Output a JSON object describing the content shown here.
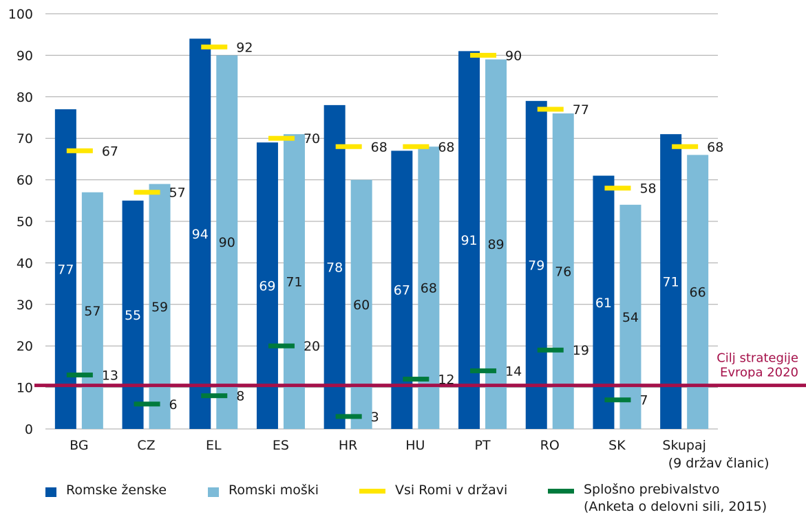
{
  "chart_data": {
    "type": "bar",
    "categories": [
      "BG",
      "CZ",
      "EL",
      "ES",
      "HR",
      "HU",
      "PT",
      "RO",
      "SK",
      "Skupaj\n(9 držav članic)"
    ],
    "series": [
      {
        "name": "Romske ženske",
        "values": [
          77,
          55,
          94,
          69,
          78,
          67,
          91,
          79,
          61,
          71
        ]
      },
      {
        "name": "Romski moški",
        "values": [
          57,
          59,
          90,
          71,
          60,
          68,
          89,
          76,
          54,
          66
        ]
      }
    ],
    "markers": [
      {
        "name": "Vsi Romi v državi",
        "values": [
          67,
          57,
          92,
          70,
          68,
          68,
          90,
          77,
          58,
          68
        ]
      },
      {
        "name": "Splošno prebivalstvo\n(Anketa o delovni sili, 2015)",
        "values": [
          13,
          6,
          8,
          20,
          3,
          12,
          14,
          19,
          7,
          null
        ]
      }
    ],
    "target": {
      "value": 10.5,
      "label": "Cilj strategije\nEvropa 2020"
    },
    "ylim": [
      0,
      100
    ],
    "yticks": [
      0,
      10,
      20,
      30,
      40,
      50,
      60,
      70,
      80,
      90,
      100
    ],
    "grid": true,
    "legend": "bottom",
    "colors": {
      "women": "#0054a6",
      "men": "#7dbbd8",
      "all_roma": "#ffe600",
      "general": "#007a3d",
      "target": "#a5114a",
      "grid": "#a6a6a6"
    }
  }
}
